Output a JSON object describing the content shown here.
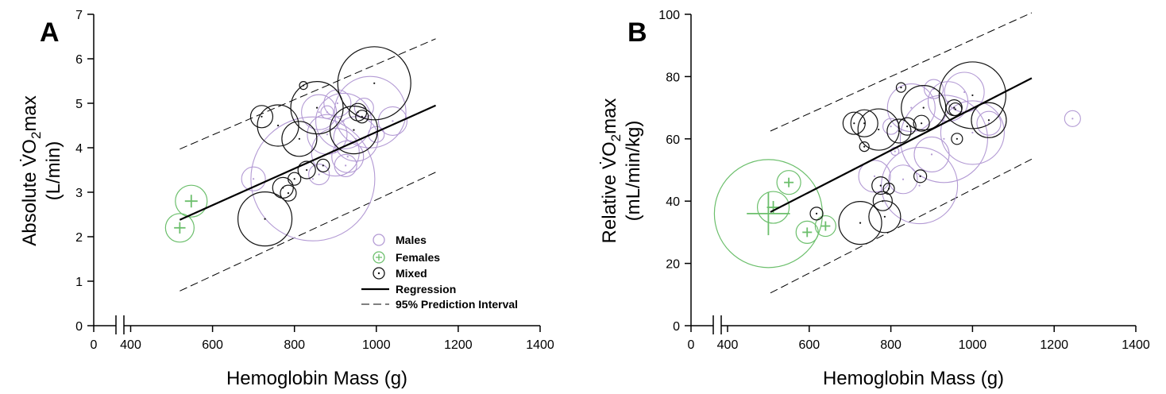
{
  "colors": {
    "Males": "#b39ad4",
    "Females": "#6cbf6c",
    "Mixed": "#111111",
    "axis": "#000000"
  },
  "legend": {
    "males": "Males",
    "females": "Females",
    "mixed": "Mixed",
    "regression": "Regression",
    "prediction": "95% Prediction Interval"
  },
  "chart_data": [
    {
      "panel": "A",
      "type": "scatter",
      "bubble": true,
      "xlabel": "Hemoglobin Mass (g)",
      "ylabel_line1": "Absolute V̇O",
      "ylabel_sub": "2",
      "ylabel_suffix": "max",
      "ylabel_line2": "(L/min)",
      "x_ticks": [
        "0",
        "400",
        "600",
        "800",
        "1000",
        "1200",
        "1400"
      ],
      "y_ticks": [
        "0",
        "1",
        "2",
        "3",
        "4",
        "5",
        "6",
        "7"
      ],
      "xlim": [
        400,
        1400
      ],
      "ylim": [
        0,
        7
      ],
      "axis_break": true,
      "legend_position": "lower-right",
      "regression": {
        "x": [
          520,
          1145
        ],
        "y": [
          2.38,
          4.95
        ]
      },
      "prediction_upper": {
        "x": [
          520,
          1145
        ],
        "y": [
          3.97,
          6.45
        ]
      },
      "prediction_lower": {
        "x": [
          520,
          1145
        ],
        "y": [
          0.78,
          3.45
        ]
      },
      "series": [
        {
          "name": "Males",
          "points": [
            {
              "x": 845,
              "y": 3.3,
              "r": 78
            },
            {
              "x": 985,
              "y": 4.8,
              "r": 45
            },
            {
              "x": 920,
              "y": 4.6,
              "r": 35
            },
            {
              "x": 900,
              "y": 3.9,
              "r": 30
            },
            {
              "x": 950,
              "y": 4.2,
              "r": 28
            },
            {
              "x": 880,
              "y": 4.3,
              "r": 25
            },
            {
              "x": 860,
              "y": 4.8,
              "r": 22
            },
            {
              "x": 930,
              "y": 3.8,
              "r": 20
            },
            {
              "x": 1040,
              "y": 4.6,
              "r": 18
            },
            {
              "x": 905,
              "y": 5.0,
              "r": 17
            },
            {
              "x": 700,
              "y": 3.3,
              "r": 15
            },
            {
              "x": 860,
              "y": 3.4,
              "r": 13
            },
            {
              "x": 925,
              "y": 3.6,
              "r": 14
            },
            {
              "x": 970,
              "y": 4.9,
              "r": 12
            },
            {
              "x": 880,
              "y": 4.8,
              "r": 8
            },
            {
              "x": 1000,
              "y": 4.3,
              "r": 10
            }
          ]
        },
        {
          "name": "Females",
          "points": [
            {
              "x": 520,
              "y": 2.2,
              "r": 18
            },
            {
              "x": 548,
              "y": 2.8,
              "r": 20
            }
          ]
        },
        {
          "name": "Mixed",
          "points": [
            {
              "x": 995,
              "y": 5.45,
              "r": 46
            },
            {
              "x": 855,
              "y": 4.9,
              "r": 33
            },
            {
              "x": 760,
              "y": 4.5,
              "r": 26
            },
            {
              "x": 812,
              "y": 4.2,
              "r": 22
            },
            {
              "x": 945,
              "y": 4.4,
              "r": 30
            },
            {
              "x": 728,
              "y": 2.4,
              "r": 34
            },
            {
              "x": 720,
              "y": 4.7,
              "r": 14
            },
            {
              "x": 955,
              "y": 4.8,
              "r": 11
            },
            {
              "x": 965,
              "y": 4.7,
              "r": 8
            },
            {
              "x": 822,
              "y": 5.4,
              "r": 5
            },
            {
              "x": 830,
              "y": 3.5,
              "r": 11
            },
            {
              "x": 870,
              "y": 3.6,
              "r": 8
            },
            {
              "x": 800,
              "y": 3.3,
              "r": 8
            },
            {
              "x": 772,
              "y": 3.1,
              "r": 13
            },
            {
              "x": 785,
              "y": 2.98,
              "r": 10
            }
          ]
        }
      ]
    },
    {
      "panel": "B",
      "type": "scatter",
      "bubble": true,
      "xlabel": "Hemoglobin Mass (g)",
      "ylabel_line1": "Relative V̇O",
      "ylabel_sub": "2",
      "ylabel_suffix": "max",
      "ylabel_line2": "(mL/min/kg)",
      "x_ticks": [
        "0",
        "400",
        "600",
        "800",
        "1000",
        "1200",
        "1400"
      ],
      "y_ticks": [
        "0",
        "20",
        "40",
        "60",
        "80",
        "100"
      ],
      "xlim": [
        400,
        1400
      ],
      "ylim": [
        0,
        100
      ],
      "axis_break": true,
      "regression": {
        "x": [
          505,
          1145
        ],
        "y": [
          36.5,
          79.5
        ]
      },
      "prediction_upper": {
        "x": [
          505,
          1145
        ],
        "y": [
          62.5,
          100.5
        ]
      },
      "prediction_lower": {
        "x": [
          505,
          1145
        ],
        "y": [
          10.5,
          53.5
        ]
      },
      "series": [
        {
          "name": "Males",
          "points": [
            {
              "x": 930,
              "y": 60,
              "r": 55
            },
            {
              "x": 1000,
              "y": 62,
              "r": 40
            },
            {
              "x": 870,
              "y": 45,
              "r": 48
            },
            {
              "x": 850,
              "y": 70,
              "r": 30
            },
            {
              "x": 940,
              "y": 72,
              "r": 25
            },
            {
              "x": 900,
              "y": 55,
              "r": 22
            },
            {
              "x": 980,
              "y": 75,
              "r": 25
            },
            {
              "x": 760,
              "y": 48,
              "r": 20
            },
            {
              "x": 1040,
              "y": 65,
              "r": 15
            },
            {
              "x": 1245,
              "y": 66.5,
              "r": 10
            },
            {
              "x": 830,
              "y": 47,
              "r": 18
            },
            {
              "x": 905,
              "y": 76,
              "r": 12
            },
            {
              "x": 800,
              "y": 64,
              "r": 10
            },
            {
              "x": 810,
              "y": 56,
              "r": 5
            }
          ]
        },
        {
          "name": "Females",
          "points": [
            {
              "x": 500,
              "y": 36,
              "r": 68
            },
            {
              "x": 512,
              "y": 38,
              "r": 20
            },
            {
              "x": 550,
              "y": 46,
              "r": 15
            },
            {
              "x": 595,
              "y": 30,
              "r": 14
            },
            {
              "x": 640,
              "y": 32,
              "r": 13
            }
          ]
        },
        {
          "name": "Mixed",
          "points": [
            {
              "x": 1000,
              "y": 74,
              "r": 42
            },
            {
              "x": 770,
              "y": 63,
              "r": 26
            },
            {
              "x": 880,
              "y": 70,
              "r": 28
            },
            {
              "x": 725,
              "y": 33,
              "r": 27
            },
            {
              "x": 785,
              "y": 35,
              "r": 20
            },
            {
              "x": 820,
              "y": 62.5,
              "r": 15
            },
            {
              "x": 710,
              "y": 65,
              "r": 14
            },
            {
              "x": 735,
              "y": 65,
              "r": 17
            },
            {
              "x": 840,
              "y": 64,
              "r": 11
            },
            {
              "x": 955,
              "y": 70,
              "r": 10
            },
            {
              "x": 958,
              "y": 69.5,
              "r": 8
            },
            {
              "x": 1040,
              "y": 66,
              "r": 22
            },
            {
              "x": 875,
              "y": 65,
              "r": 10
            },
            {
              "x": 825,
              "y": 76.5,
              "r": 6
            },
            {
              "x": 735,
              "y": 57.5,
              "r": 6
            },
            {
              "x": 962,
              "y": 60,
              "r": 7
            },
            {
              "x": 872,
              "y": 48,
              "r": 8
            },
            {
              "x": 775,
              "y": 45,
              "r": 11
            },
            {
              "x": 780,
              "y": 40,
              "r": 12
            },
            {
              "x": 795,
              "y": 44,
              "r": 7
            },
            {
              "x": 618,
              "y": 36,
              "r": 8
            }
          ]
        }
      ]
    }
  ]
}
